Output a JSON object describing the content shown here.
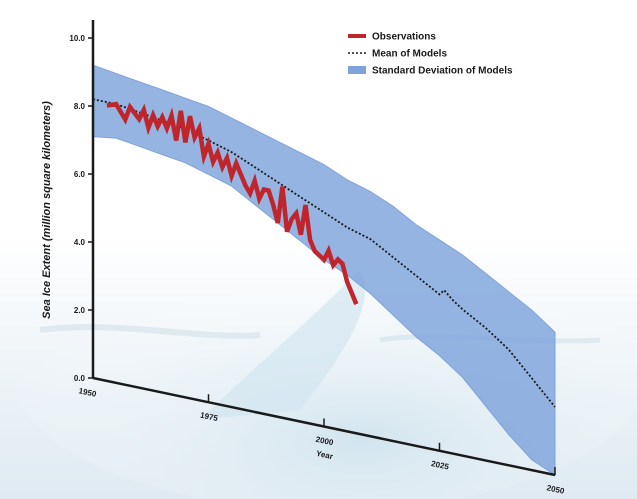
{
  "chart_data": {
    "type": "line",
    "title": "",
    "xlabel": "Year",
    "ylabel": "Sea Ice Extent (million square kilometers)",
    "xlim": [
      1950,
      2050
    ],
    "ylim": [
      0,
      10
    ],
    "x_ticks": [
      "1950",
      "1975",
      "2000",
      "2025",
      "2050"
    ],
    "y_ticks": [
      "0.0",
      "2.0",
      "4.0",
      "6.0",
      "8.0",
      "10.0"
    ],
    "legend_position": "top-right",
    "colors": {
      "observations": "#c0252c",
      "mean": "#1a1a1a",
      "std": "#7ea3dc"
    },
    "series": [
      {
        "name": "Observations",
        "style": "thick-red-line",
        "x": [
          1953,
          1955,
          1957,
          1958,
          1960,
          1961,
          1962,
          1963,
          1964,
          1965,
          1966,
          1967,
          1968,
          1969,
          1970,
          1971,
          1972,
          1973,
          1974,
          1975,
          1976,
          1977,
          1978,
          1979,
          1980,
          1981,
          1982,
          1983,
          1984,
          1985,
          1986,
          1987,
          1988,
          1989,
          1990,
          1991,
          1992,
          1993,
          1994,
          1995,
          1996,
          1997,
          1998,
          1999,
          2000,
          2001,
          2002,
          2003,
          2004,
          2005,
          2006,
          2007
        ],
        "y": [
          8.1,
          8.2,
          7.8,
          8.2,
          7.9,
          8.2,
          7.7,
          8.1,
          7.8,
          8.1,
          7.8,
          8.2,
          7.5,
          8.4,
          7.5,
          8.3,
          7.7,
          8.0,
          7.2,
          7.6,
          7.1,
          7.4,
          7.0,
          7.3,
          6.8,
          7.2,
          6.9,
          6.6,
          6.4,
          6.8,
          6.3,
          6.6,
          6.6,
          6.2,
          5.7,
          6.8,
          5.5,
          5.9,
          6.1,
          5.5,
          6.4,
          5.4,
          5.1,
          5.0,
          4.9,
          5.2,
          4.8,
          5.0,
          4.9,
          4.4,
          4.1,
          3.8
        ]
      },
      {
        "name": "Mean of Models",
        "style": "dotted-black-line",
        "x": [
          1950,
          1955,
          1960,
          1965,
          1970,
          1975,
          1980,
          1985,
          1990,
          1995,
          2000,
          2005,
          2010,
          2015,
          2020,
          2025,
          2026,
          2028,
          2030,
          2035,
          2040,
          2045,
          2050
        ],
        "y": [
          8.2,
          8.2,
          8.1,
          8.0,
          7.9,
          7.7,
          7.5,
          7.2,
          6.9,
          6.6,
          6.3,
          6.0,
          5.8,
          5.4,
          5.0,
          4.6,
          4.75,
          4.5,
          4.3,
          3.9,
          3.4,
          2.7,
          2.0
        ]
      },
      {
        "name": "Standard Deviation of Models",
        "style": "blue-band",
        "x": [
          1950,
          1955,
          1960,
          1965,
          1970,
          1975,
          1980,
          1985,
          1990,
          1995,
          2000,
          2005,
          2010,
          2015,
          2020,
          2025,
          2030,
          2035,
          2040,
          2045,
          2050
        ],
        "upper": [
          9.2,
          9.1,
          9.0,
          8.9,
          8.8,
          8.7,
          8.5,
          8.3,
          8.1,
          7.9,
          7.7,
          7.4,
          7.2,
          6.9,
          6.5,
          6.2,
          5.9,
          5.5,
          5.1,
          4.7,
          4.2
        ],
        "lower": [
          7.1,
          7.2,
          7.1,
          7.0,
          6.9,
          6.7,
          6.5,
          6.1,
          5.7,
          5.3,
          4.9,
          4.6,
          4.2,
          3.7,
          3.2,
          2.8,
          2.3,
          1.6,
          0.9,
          0.3,
          0.0
        ]
      }
    ]
  }
}
